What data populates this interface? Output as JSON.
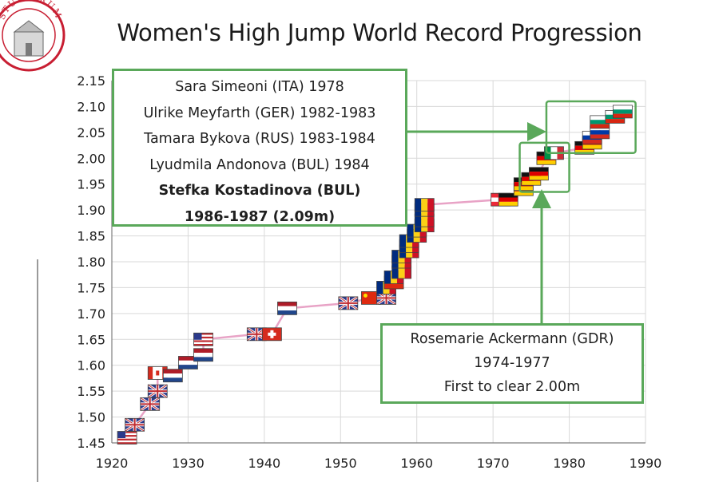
{
  "chart_data": {
    "type": "scatter",
    "title": "Women's High Jump World Record Progression",
    "xlabel": "",
    "ylabel": "",
    "xlim": [
      1920,
      1990
    ],
    "ylim": [
      1.45,
      2.15
    ],
    "x_ticks": [
      "1920",
      "1930",
      "1940",
      "1950",
      "1960",
      "1970",
      "1980",
      "1990"
    ],
    "y_ticks": [
      "1.45",
      "1.50",
      "1.55",
      "1.60",
      "1.65",
      "1.70",
      "1.75",
      "1.80",
      "1.85",
      "1.90",
      "1.95",
      "2.00",
      "2.05",
      "2.10",
      "2.15"
    ],
    "trend_color": "#e8a3c6",
    "points": [
      {
        "x": 1922,
        "y": 1.46,
        "flag": "USA"
      },
      {
        "x": 1923,
        "y": 1.485,
        "flag": "GBR"
      },
      {
        "x": 1925,
        "y": 1.525,
        "flag": "GBR"
      },
      {
        "x": 1926,
        "y": 1.55,
        "flag": "GBR"
      },
      {
        "x": 1926,
        "y": 1.585,
        "flag": "CAN"
      },
      {
        "x": 1928,
        "y": 1.58,
        "flag": "NED"
      },
      {
        "x": 1930,
        "y": 1.605,
        "flag": "NED"
      },
      {
        "x": 1932,
        "y": 1.62,
        "flag": "NED"
      },
      {
        "x": 1932,
        "y": 1.65,
        "flag": "USA"
      },
      {
        "x": 1939,
        "y": 1.66,
        "flag": "GBR"
      },
      {
        "x": 1941,
        "y": 1.66,
        "flag": "SUI"
      },
      {
        "x": 1943,
        "y": 1.71,
        "flag": "NED"
      },
      {
        "x": 1951,
        "y": 1.72,
        "flag": "GBR"
      },
      {
        "x": 1954,
        "y": 1.73,
        "flag": "CHN"
      },
      {
        "x": 1956,
        "y": 1.73,
        "flag": "GBR"
      },
      {
        "x": 1956,
        "y": 1.75,
        "flag": "ROU"
      },
      {
        "x": 1957,
        "y": 1.76,
        "flag": "CHN"
      },
      {
        "x": 1957,
        "y": 1.77,
        "flag": "ROU"
      },
      {
        "x": 1958,
        "y": 1.78,
        "flag": "ROU"
      },
      {
        "x": 1958,
        "y": 1.8,
        "flag": "ROU"
      },
      {
        "x": 1958,
        "y": 1.81,
        "flag": "ROU"
      },
      {
        "x": 1959,
        "y": 1.82,
        "flag": "ROU"
      },
      {
        "x": 1959,
        "y": 1.83,
        "flag": "ROU"
      },
      {
        "x": 1959,
        "y": 1.84,
        "flag": "ROU"
      },
      {
        "x": 1960,
        "y": 1.85,
        "flag": "ROU"
      },
      {
        "x": 1960,
        "y": 1.86,
        "flag": "ROU"
      },
      {
        "x": 1961,
        "y": 1.87,
        "flag": "ROU"
      },
      {
        "x": 1961,
        "y": 1.88,
        "flag": "ROU"
      },
      {
        "x": 1961,
        "y": 1.9,
        "flag": "ROU"
      },
      {
        "x": 1961,
        "y": 1.91,
        "flag": "ROU"
      },
      {
        "x": 1971,
        "y": 1.92,
        "flag": "AUT"
      },
      {
        "x": 1972,
        "y": 1.92,
        "flag": "GER"
      },
      {
        "x": 1974,
        "y": 1.94,
        "flag": "GER"
      },
      {
        "x": 1974,
        "y": 1.95,
        "flag": "GER"
      },
      {
        "x": 1975,
        "y": 1.96,
        "flag": "GER"
      },
      {
        "x": 1976,
        "y": 1.97,
        "flag": "GER"
      },
      {
        "x": 1977,
        "y": 2.0,
        "flag": "GER"
      },
      {
        "x": 1978,
        "y": 2.01,
        "flag": "ITA"
      },
      {
        "x": 1982,
        "y": 2.02,
        "flag": "GER"
      },
      {
        "x": 1983,
        "y": 2.03,
        "flag": "GER"
      },
      {
        "x": 1983,
        "y": 2.04,
        "flag": "RUS"
      },
      {
        "x": 1984,
        "y": 2.05,
        "flag": "RUS"
      },
      {
        "x": 1984,
        "y": 2.07,
        "flag": "BUL"
      },
      {
        "x": 1986,
        "y": 2.08,
        "flag": "BUL"
      },
      {
        "x": 1987,
        "y": 2.09,
        "flag": "BUL"
      }
    ],
    "highlight_boxes": [
      {
        "x0": 1973.5,
        "x1": 1980,
        "y0": 1.935,
        "y1": 2.03
      },
      {
        "x0": 1977,
        "x1": 1988.7,
        "y0": 2.01,
        "y1": 2.11
      }
    ],
    "annotations": {
      "top": {
        "lines": [
          {
            "text": "Sara Simeoni (ITA) 1978",
            "bold": false
          },
          {
            "text": "Ulrike Meyfarth (GER) 1982-1983",
            "bold": false
          },
          {
            "text": "Tamara Bykova (RUS) 1983-1984",
            "bold": false
          },
          {
            "text": "Lyudmila Andonova (BUL) 1984",
            "bold": false
          },
          {
            "text": "Stefka Kostadinova (BUL)",
            "bold": true
          },
          {
            "text": "1986-1987 (2.09m)",
            "bold": true
          }
        ]
      },
      "bottom": {
        "lines": [
          {
            "text": "Rosemarie Ackermann (GDR)",
            "bold": false
          },
          {
            "text": "1974-1977",
            "bold": false
          },
          {
            "text": "First to clear 2.00m",
            "bold": false
          }
        ]
      }
    },
    "box_color": "#5aa85a"
  },
  "logo": {
    "text": "STUDIORUM",
    "color": "#c81e32"
  }
}
